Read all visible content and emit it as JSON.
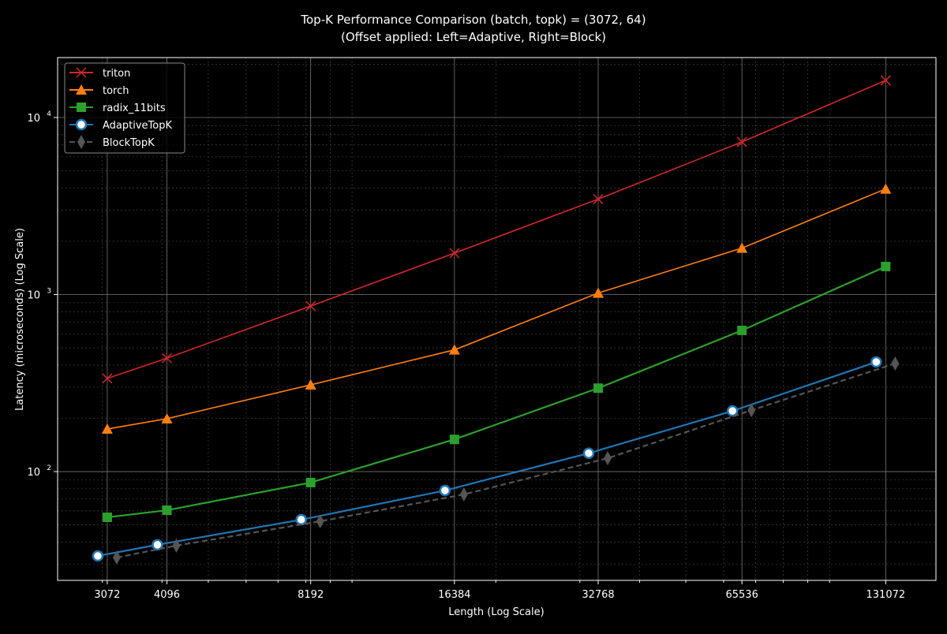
{
  "chart_data": {
    "type": "line",
    "title": "Top-K Performance Comparison (batch, topk) = (3072, 64)",
    "subtitle": "(Offset applied: Left=Adaptive, Right=Block)",
    "xlabel": "Length (Log Scale)",
    "ylabel": "Latency (microseconds) (Log Scale)",
    "x_scale": "log2",
    "y_scale": "log10",
    "xlim": [
      2418,
      167000
    ],
    "ylim": [
      24.3,
      21800
    ],
    "x": [
      3072,
      4096,
      8192,
      16384,
      32768,
      65536,
      131072
    ],
    "x_tick_labels": [
      "3072",
      "4096",
      "8192",
      "16384",
      "32768",
      "65536",
      "131072"
    ],
    "y_ticks": [
      100,
      1000,
      10000
    ],
    "y_tick_labels": [
      {
        "base": "10",
        "exp": "2"
      },
      {
        "base": "10",
        "exp": "3"
      },
      {
        "base": "10",
        "exp": "4"
      }
    ],
    "grid": true,
    "legend_position": "top-left",
    "series": [
      {
        "name": "triton",
        "color": "#d62728",
        "marker": "x",
        "linestyle": "solid",
        "x_offset": "none",
        "values": [
          336,
          437,
          861,
          1714,
          3460,
          7280,
          16200
        ]
      },
      {
        "name": "torch",
        "color": "#ff7f0e",
        "marker": "triangle",
        "linestyle": "solid",
        "x_offset": "none",
        "values": [
          174,
          199,
          309,
          487,
          1020,
          1830,
          3950
        ]
      },
      {
        "name": "radix_11bits",
        "color": "#2ca02c",
        "marker": "square",
        "linestyle": "solid",
        "x_offset": "none",
        "values": [
          55.2,
          60.5,
          86.7,
          152,
          296,
          627,
          1440
        ]
      },
      {
        "name": "AdaptiveTopK",
        "color": "#1f77b4",
        "marker": "circle",
        "linestyle": "solid",
        "x_offset": "left",
        "values": [
          33.4,
          38.6,
          53.5,
          78.2,
          127,
          220,
          416
        ]
      },
      {
        "name": "BlockTopK",
        "color": "#555555",
        "marker": "diamond",
        "linestyle": "dashed",
        "x_offset": "right",
        "values": [
          32.7,
          38.2,
          52.4,
          74.3,
          119,
          222,
          408
        ]
      }
    ]
  }
}
